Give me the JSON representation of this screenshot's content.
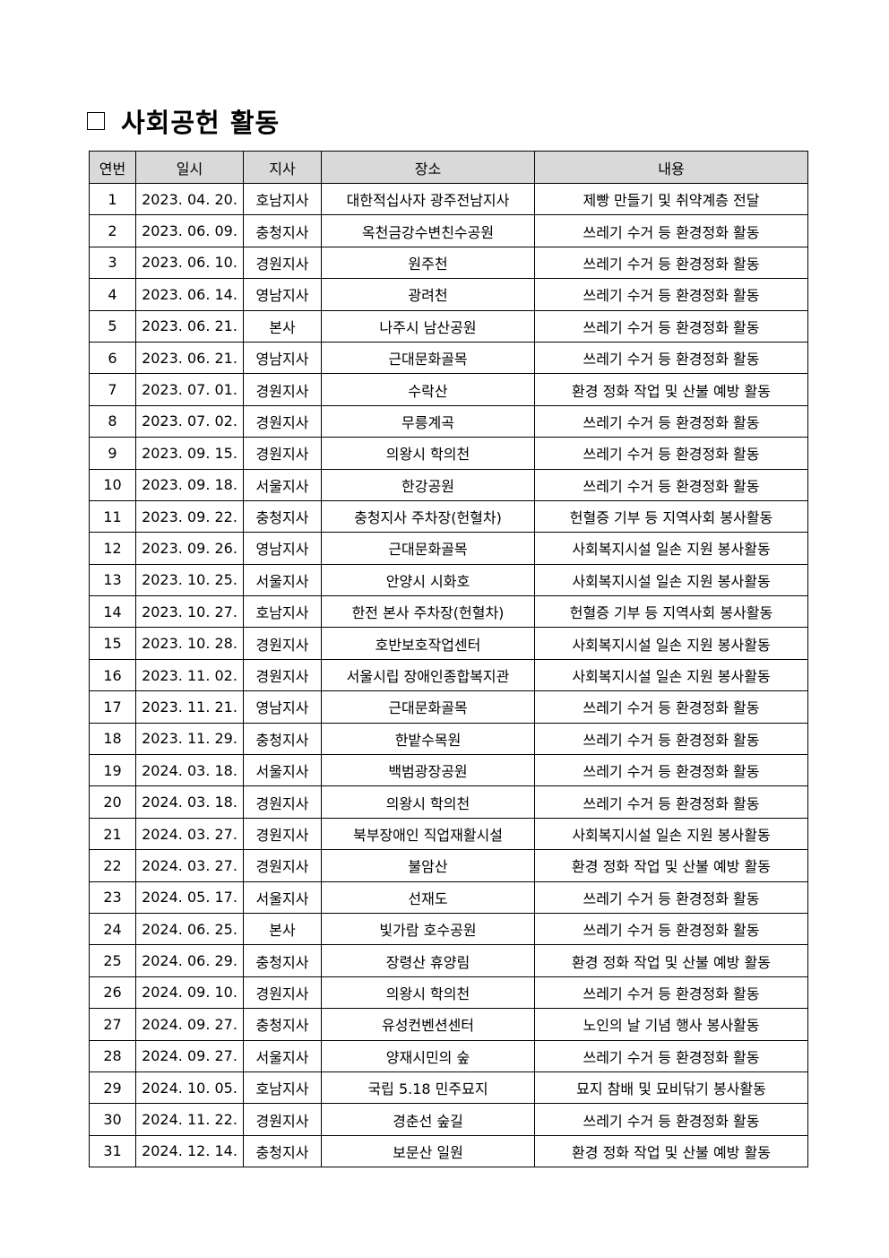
{
  "title": "사회공헌 활동",
  "table": {
    "headers": [
      "연번",
      "일시",
      "지사",
      "장소",
      "내용"
    ],
    "rows": [
      [
        "1",
        "2023. 04. 20.",
        "호남지사",
        "대한적십사자 광주전남지사",
        "제빵 만들기 및 취약계층 전달"
      ],
      [
        "2",
        "2023. 06. 09.",
        "충청지사",
        "옥천금강수변친수공원",
        "쓰레기 수거 등 환경정화 활동"
      ],
      [
        "3",
        "2023. 06. 10.",
        "경원지사",
        "원주천",
        "쓰레기 수거 등 환경정화 활동"
      ],
      [
        "4",
        "2023. 06. 14.",
        "영남지사",
        "광려천",
        "쓰레기 수거 등 환경정화 활동"
      ],
      [
        "5",
        "2023. 06. 21.",
        "본사",
        "나주시 남산공원",
        "쓰레기 수거 등 환경정화 활동"
      ],
      [
        "6",
        "2023. 06. 21.",
        "영남지사",
        "근대문화골목",
        "쓰레기 수거 등 환경정화 활동"
      ],
      [
        "7",
        "2023. 07. 01.",
        "경원지사",
        "수락산",
        "환경 정화 작업 및 산불 예방 활동"
      ],
      [
        "8",
        "2023. 07. 02.",
        "경원지사",
        "무릉계곡",
        "쓰레기 수거 등 환경정화 활동"
      ],
      [
        "9",
        "2023. 09. 15.",
        "경원지사",
        "의왕시 학의천",
        "쓰레기 수거 등 환경정화 활동"
      ],
      [
        "10",
        "2023. 09. 18.",
        "서울지사",
        "한강공원",
        "쓰레기 수거 등 환경정화 활동"
      ],
      [
        "11",
        "2023. 09. 22.",
        "충청지사",
        "충청지사 주차장(헌혈차)",
        "헌혈증 기부 등 지역사회 봉사활동"
      ],
      [
        "12",
        "2023. 09. 26.",
        "영남지사",
        "근대문화골목",
        "사회복지시설 일손 지원 봉사활동"
      ],
      [
        "13",
        "2023. 10. 25.",
        "서울지사",
        "안양시 시화호",
        "사회복지시설 일손 지원 봉사활동"
      ],
      [
        "14",
        "2023. 10. 27.",
        "호남지사",
        "한전 본사 주차장(헌혈차)",
        "헌혈증 기부 등 지역사회 봉사활동"
      ],
      [
        "15",
        "2023. 10. 28.",
        "경원지사",
        "호반보호작업센터",
        "사회복지시설 일손 지원 봉사활동"
      ],
      [
        "16",
        "2023. 11. 02.",
        "경원지사",
        "서울시립 장애인종합복지관",
        "사회복지시설 일손 지원 봉사활동"
      ],
      [
        "17",
        "2023. 11. 21.",
        "영남지사",
        "근대문화골목",
        "쓰레기 수거 등 환경정화 활동"
      ],
      [
        "18",
        "2023. 11. 29.",
        "충청지사",
        "한밭수목원",
        "쓰레기 수거 등 환경정화 활동"
      ],
      [
        "19",
        "2024. 03. 18.",
        "서울지사",
        "백범광장공원",
        "쓰레기 수거 등 환경정화 활동"
      ],
      [
        "20",
        "2024. 03. 18.",
        "경원지사",
        "의왕시 학의천",
        "쓰레기 수거 등 환경정화 활동"
      ],
      [
        "21",
        "2024. 03. 27.",
        "경원지사",
        "북부장애인 직업재활시설",
        "사회복지시설 일손 지원 봉사활동"
      ],
      [
        "22",
        "2024. 03. 27.",
        "경원지사",
        "불암산",
        "환경 정화 작업 및 산불 예방 활동"
      ],
      [
        "23",
        "2024. 05. 17.",
        "서울지사",
        "선재도",
        "쓰레기 수거 등 환경정화 활동"
      ],
      [
        "24",
        "2024. 06. 25.",
        "본사",
        "빛가람 호수공원",
        "쓰레기 수거 등 환경정화 활동"
      ],
      [
        "25",
        "2024. 06. 29.",
        "충청지사",
        "장령산 휴양림",
        "환경 정화 작업 및 산불 예방 활동"
      ],
      [
        "26",
        "2024. 09. 10.",
        "경원지사",
        "의왕시 학의천",
        "쓰레기 수거 등 환경정화 활동"
      ],
      [
        "27",
        "2024. 09. 27.",
        "충청지사",
        "유성컨벤션센터",
        "노인의 날 기념 행사 봉사활동"
      ],
      [
        "28",
        "2024. 09. 27.",
        "서울지사",
        "양재시민의 숲",
        "쓰레기 수거 등 환경정화 활동"
      ],
      [
        "29",
        "2024. 10. 05.",
        "호남지사",
        "국립 5.18 민주묘지",
        "묘지 참배 및 묘비닦기 봉사활동"
      ],
      [
        "30",
        "2024. 11. 22.",
        "경원지사",
        "경춘선 숲길",
        "쓰레기 수거 등 환경정화 활동"
      ],
      [
        "31",
        "2024. 12. 14.",
        "충청지사",
        "보문산 일원",
        "환경 정화 작업 및 산불 예방 활동"
      ]
    ]
  }
}
